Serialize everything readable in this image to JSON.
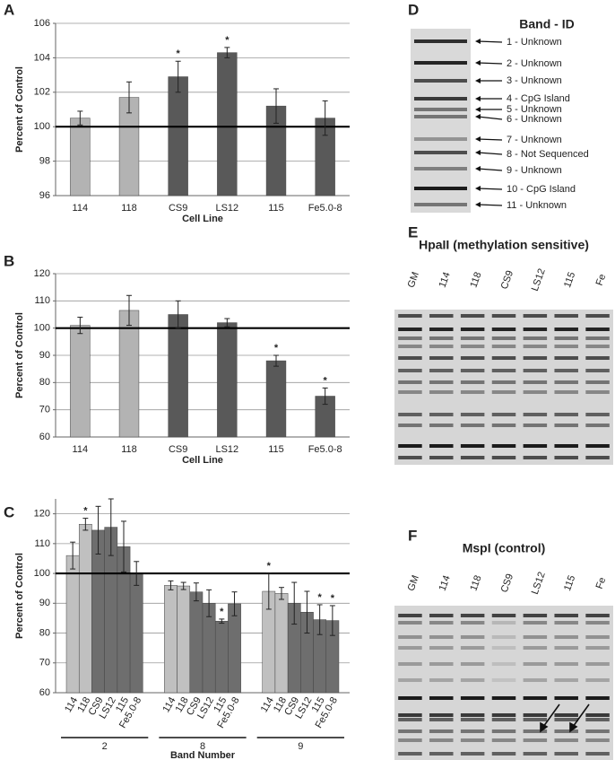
{
  "chart_data": [
    {
      "type": "bar",
      "panel": "A",
      "y_label": "Percent of Control",
      "x_label": "Cell Line",
      "categories": [
        "114",
        "118",
        "CS9",
        "LS12",
        "115",
        "Fe5.0-8"
      ],
      "values": [
        100.5,
        101.7,
        102.9,
        104.3,
        101.2,
        100.5
      ],
      "errors": [
        0.4,
        0.9,
        0.9,
        0.3,
        1.0,
        1.0
      ],
      "markers": [
        null,
        null,
        "*",
        "*",
        null,
        null
      ],
      "colors": [
        "#b3b3b3",
        "#b3b3b3",
        "#595959",
        "#595959",
        "#595959",
        "#595959"
      ],
      "ylim": [
        96,
        106
      ],
      "yticks": [
        96,
        98,
        100,
        102,
        104,
        106
      ],
      "grid": true,
      "reference_line": 100
    },
    {
      "type": "bar",
      "panel": "B",
      "y_label": "Percent of Control",
      "x_label": "Cell Line",
      "categories": [
        "114",
        "118",
        "CS9",
        "LS12",
        "115",
        "Fe5.0-8"
      ],
      "values": [
        101,
        106.5,
        105,
        102,
        88,
        75
      ],
      "errors": [
        3,
        5.5,
        5,
        1.5,
        2,
        3
      ],
      "markers": [
        null,
        null,
        null,
        null,
        "*",
        "*"
      ],
      "colors": [
        "#b3b3b3",
        "#b3b3b3",
        "#595959",
        "#595959",
        "#595959",
        "#595959"
      ],
      "ylim": [
        60,
        120
      ],
      "yticks": [
        60,
        70,
        80,
        90,
        100,
        110,
        120
      ],
      "grid": true,
      "reference_line": 100
    },
    {
      "type": "bar",
      "panel": "C",
      "y_label": "Percent of Control",
      "x_label": "Band Number",
      "categories": [
        "2",
        "8",
        "9"
      ],
      "series": [
        {
          "name": "114",
          "color": "#c0c0c0",
          "values": [
            106,
            96,
            94
          ],
          "errors": [
            4.5,
            1.5,
            6
          ],
          "markers": [
            null,
            null,
            "*"
          ]
        },
        {
          "name": "118",
          "color": "#c0c0c0",
          "values": [
            116.5,
            95.8,
            93.3
          ],
          "errors": [
            2,
            1.2,
            2
          ],
          "markers": [
            "*",
            null,
            null
          ]
        },
        {
          "name": "CS9",
          "color": "#6e6e6e",
          "values": [
            114.5,
            93.8,
            90
          ],
          "errors": [
            8,
            3,
            7
          ],
          "markers": [
            null,
            null,
            null
          ]
        },
        {
          "name": "LS12",
          "color": "#6e6e6e",
          "values": [
            115.5,
            90,
            87
          ],
          "errors": [
            9.5,
            4.5,
            7
          ],
          "markers": [
            null,
            null,
            null
          ]
        },
        {
          "name": "115",
          "color": "#6e6e6e",
          "values": [
            109,
            84,
            84.5
          ],
          "errors": [
            8.5,
            0.7,
            5
          ],
          "markers": [
            null,
            "*",
            "*"
          ]
        },
        {
          "name": "Fe5.0-8",
          "color": "#6e6e6e",
          "values": [
            100,
            89.8,
            84.2
          ],
          "errors": [
            4,
            4,
            5
          ],
          "markers": [
            null,
            null,
            "*"
          ]
        }
      ],
      "ylim": [
        60,
        125
      ],
      "yticks": [
        60,
        70,
        80,
        90,
        100,
        110,
        120
      ],
      "grid": true,
      "reference_line": 100
    }
  ],
  "gels": [
    {
      "panel": "D",
      "title": "Band - ID",
      "bands": [
        "1 - Unknown",
        "2 - Unknown",
        "3 - Unknown",
        "4 - CpG Island",
        "5 - Unknown",
        "6 - Unknown",
        "7 - Unknown",
        "8 - Not Sequenced",
        "9 - Unknown",
        "10 - CpG Island",
        "11 - Unknown"
      ]
    },
    {
      "panel": "E",
      "title": "HpaII (methylation sensitive)",
      "lanes": [
        "GM",
        "114",
        "118",
        "CS9",
        "LS12",
        "115",
        "Fe"
      ]
    },
    {
      "panel": "F",
      "title": "MspI (control)",
      "lanes": [
        "GM",
        "114",
        "118",
        "CS9",
        "LS12",
        "115",
        "Fe"
      ]
    }
  ]
}
